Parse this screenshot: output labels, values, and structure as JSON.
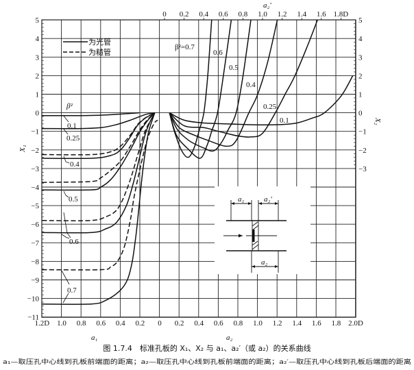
{
  "chart_data": {
    "type": "line",
    "caption": "图 1.7.4　标准孔板的 X₁、X₂ 与 a₁、a₂′（或 a₂）的关系曲线",
    "note": "a₁—取压孔中心线到孔板前端面的距离；a₂—取压孔中心线到孔板前端面的距离；a₂′—取压孔中心线到孔板后端面的距离",
    "axes": {
      "left_y": {
        "label": "X₁",
        "ticks": [
          "5",
          "4",
          "3",
          "2",
          "1",
          "0",
          "-1",
          "-2",
          "-3",
          "-4",
          "-5",
          "-6",
          "-7",
          "-8",
          "-9",
          "-10",
          "-11"
        ],
        "range": [
          -11,
          5
        ]
      },
      "right_y": {
        "label": "X₂",
        "ticks": [
          "5",
          "4",
          "3",
          "2",
          "1",
          "0",
          "-1",
          "-2",
          "-3"
        ],
        "range": [
          -3,
          5
        ]
      },
      "bottom_left_x": {
        "label": "a₁",
        "ticks": [
          "1.2D",
          "1.0",
          "0.8",
          "0.6",
          "0.4",
          "0.2",
          "0"
        ],
        "range": [
          1.2,
          0
        ]
      },
      "bottom_right_x": {
        "label": "a₂",
        "ticks": [
          "0.2",
          "0.4",
          "0.6",
          "0.8",
          "1.0",
          "1.2",
          "1.4",
          "1.6",
          "1.8",
          "2.0D"
        ],
        "range": [
          0,
          2.0
        ]
      },
      "top_x": {
        "label": "a₂′",
        "ticks": [
          "0",
          "0.2",
          "0.4",
          "0.6",
          "0.8",
          "1.0",
          "1.2",
          "1.4",
          "1.6",
          "1.8D"
        ]
      },
      "grid": true
    },
    "legend": {
      "position": "top-left",
      "items": [
        {
          "style": "solid",
          "label": "为光管"
        },
        {
          "style": "dashed",
          "label": "为糙管"
        }
      ]
    },
    "x1_labels": {
      "beta_title": "β²",
      "values": [
        "0.1",
        "0.25",
        "0.4",
        "0.5",
        "0.6",
        "0.7"
      ]
    },
    "x2_labels": [
      "β²=0.7",
      "0.6",
      "0.5",
      "0.4",
      "0.25",
      "0.1"
    ],
    "x1_series": [
      {
        "beta2": 0.1,
        "style": "solid",
        "points": [
          [
            1.2,
            -0.15
          ],
          [
            0.8,
            -0.15
          ],
          [
            0.6,
            -0.13
          ],
          [
            0.4,
            -0.07
          ],
          [
            0.21,
            0
          ]
        ]
      },
      {
        "beta2": 0.25,
        "style": "solid",
        "points": [
          [
            1.2,
            -0.85
          ],
          [
            0.8,
            -0.85
          ],
          [
            0.6,
            -0.8
          ],
          [
            0.45,
            -0.65
          ],
          [
            0.3,
            -0.4
          ],
          [
            0.15,
            -0.1
          ],
          [
            0.05,
            0
          ]
        ]
      },
      {
        "beta2": 0.4,
        "style": "solid",
        "points": [
          [
            1.2,
            -2.45
          ],
          [
            0.7,
            -2.45
          ],
          [
            0.5,
            -2.3
          ],
          [
            0.4,
            -2.0
          ],
          [
            0.3,
            -1.3
          ],
          [
            0.23,
            -0.7
          ],
          [
            0.15,
            -0.3
          ],
          [
            0.05,
            0
          ]
        ]
      },
      {
        "beta2": 0.4,
        "style": "dashed",
        "points": [
          [
            1.2,
            -2.25
          ],
          [
            0.7,
            -2.25
          ],
          [
            0.5,
            -2.1
          ],
          [
            0.4,
            -1.8
          ],
          [
            0.3,
            -1.2
          ],
          [
            0.22,
            -0.6
          ],
          [
            0.14,
            -0.25
          ],
          [
            0.05,
            0
          ]
        ]
      },
      {
        "beta2": 0.5,
        "style": "solid",
        "points": [
          [
            1.2,
            -4.15
          ],
          [
            0.7,
            -4.15
          ],
          [
            0.6,
            -4.0
          ],
          [
            0.5,
            -3.6
          ],
          [
            0.4,
            -2.9
          ],
          [
            0.3,
            -2.0
          ],
          [
            0.2,
            -1.0
          ],
          [
            0.12,
            -0.4
          ],
          [
            0.05,
            0
          ]
        ]
      },
      {
        "beta2": 0.5,
        "style": "dashed",
        "points": [
          [
            1.2,
            -3.75
          ],
          [
            0.7,
            -3.7
          ],
          [
            0.6,
            -3.5
          ],
          [
            0.5,
            -3.1
          ],
          [
            0.4,
            -2.6
          ],
          [
            0.3,
            -1.8
          ],
          [
            0.2,
            -0.9
          ],
          [
            0.12,
            -0.35
          ],
          [
            0.05,
            0
          ]
        ]
      },
      {
        "beta2": 0.6,
        "style": "solid",
        "points": [
          [
            1.2,
            -6.45
          ],
          [
            0.7,
            -6.45
          ],
          [
            0.55,
            -6.25
          ],
          [
            0.44,
            -5.9
          ],
          [
            0.34,
            -5.0
          ],
          [
            0.27,
            -3.8
          ],
          [
            0.21,
            -2.5
          ],
          [
            0.15,
            -1.2
          ],
          [
            0.1,
            -0.5
          ],
          [
            0.05,
            0
          ]
        ]
      },
      {
        "beta2": 0.6,
        "style": "dashed",
        "points": [
          [
            1.2,
            -5.8
          ],
          [
            0.7,
            -5.8
          ],
          [
            0.55,
            -5.6
          ],
          [
            0.45,
            -5.3
          ],
          [
            0.38,
            -4.7
          ],
          [
            0.3,
            -3.6
          ],
          [
            0.22,
            -2.2
          ],
          [
            0.15,
            -1.0
          ],
          [
            0.08,
            -0.3
          ],
          [
            0.05,
            0
          ]
        ]
      },
      {
        "beta2": 0.7,
        "style": "solid",
        "points": [
          [
            1.2,
            -10.3
          ],
          [
            0.7,
            -10.3
          ],
          [
            0.55,
            -10.1
          ],
          [
            0.41,
            -9.6
          ],
          [
            0.33,
            -9.0
          ],
          [
            0.28,
            -8.0
          ],
          [
            0.24,
            -6.5
          ],
          [
            0.21,
            -5.0
          ],
          [
            0.17,
            -3.0
          ],
          [
            0.12,
            -1.2
          ],
          [
            0.07,
            -0.3
          ],
          [
            0.05,
            0
          ]
        ]
      },
      {
        "beta2": 0.7,
        "style": "dashed",
        "points": [
          [
            1.2,
            -8.45
          ],
          [
            0.6,
            -8.45
          ],
          [
            0.5,
            -8.3
          ],
          [
            0.43,
            -8.0
          ],
          [
            0.36,
            -7.2
          ],
          [
            0.3,
            -5.8
          ],
          [
            0.26,
            -4.5
          ],
          [
            0.2,
            -3.0
          ],
          [
            0.13,
            -1.5
          ],
          [
            0.06,
            -0.6
          ],
          [
            0.02,
            -0.4
          ]
        ]
      }
    ],
    "x2_series": [
      {
        "beta2": 0.7,
        "points": [
          [
            0.1,
            0
          ],
          [
            0.15,
            -1
          ],
          [
            0.22,
            -2
          ],
          [
            0.29,
            -2.4
          ],
          [
            0.35,
            -1.9
          ],
          [
            0.4,
            -1
          ],
          [
            0.45,
            0
          ],
          [
            0.49,
            2
          ],
          [
            0.53,
            5
          ]
        ]
      },
      {
        "beta2": 0.6,
        "points": [
          [
            0.1,
            0
          ],
          [
            0.17,
            -1.2
          ],
          [
            0.28,
            -1.9
          ],
          [
            0.41,
            -2.45
          ],
          [
            0.48,
            -1.8
          ],
          [
            0.53,
            -1
          ],
          [
            0.59,
            0
          ],
          [
            0.65,
            2
          ],
          [
            0.73,
            5
          ]
        ]
      },
      {
        "beta2": 0.5,
        "points": [
          [
            0.1,
            0
          ],
          [
            0.18,
            -0.9
          ],
          [
            0.3,
            -1.5
          ],
          [
            0.45,
            -1.9
          ],
          [
            0.55,
            -2.05
          ],
          [
            0.63,
            -1.6
          ],
          [
            0.7,
            -0.9
          ],
          [
            0.78,
            0
          ],
          [
            0.85,
            2
          ],
          [
            0.93,
            5
          ]
        ]
      },
      {
        "beta2": 0.4,
        "points": [
          [
            0.1,
            0
          ],
          [
            0.2,
            -0.8
          ],
          [
            0.35,
            -1.2
          ],
          [
            0.5,
            -1.5
          ],
          [
            0.68,
            -1.8
          ],
          [
            0.78,
            -1.5
          ],
          [
            0.91,
            0
          ],
          [
            1.0,
            1
          ],
          [
            1.1,
            2.7
          ],
          [
            1.2,
            5
          ]
        ]
      },
      {
        "beta2": 0.25,
        "points": [
          [
            0.1,
            0
          ],
          [
            0.25,
            -0.7
          ],
          [
            0.45,
            -0.8
          ],
          [
            0.6,
            -1.0
          ],
          [
            0.8,
            -1.25
          ],
          [
            0.94,
            -1.3
          ],
          [
            1.05,
            -1.1
          ],
          [
            1.18,
            0
          ],
          [
            1.28,
            1
          ],
          [
            1.38,
            2
          ],
          [
            1.5,
            3.5
          ],
          [
            1.61,
            5
          ]
        ]
      },
      {
        "beta2": 0.1,
        "points": [
          [
            0.1,
            0
          ],
          [
            0.25,
            -0.4
          ],
          [
            0.45,
            -0.55
          ],
          [
            0.7,
            -0.6
          ],
          [
            1.0,
            -0.65
          ],
          [
            1.25,
            -0.63
          ],
          [
            1.4,
            -0.55
          ],
          [
            1.55,
            -0.3
          ],
          [
            1.68,
            0
          ],
          [
            1.85,
            0.9
          ],
          [
            1.97,
            2
          ]
        ]
      }
    ],
    "inset": {
      "label_a1": "a₁",
      "label_a2_prime": "a₂′",
      "label_a2": "a₂"
    }
  }
}
